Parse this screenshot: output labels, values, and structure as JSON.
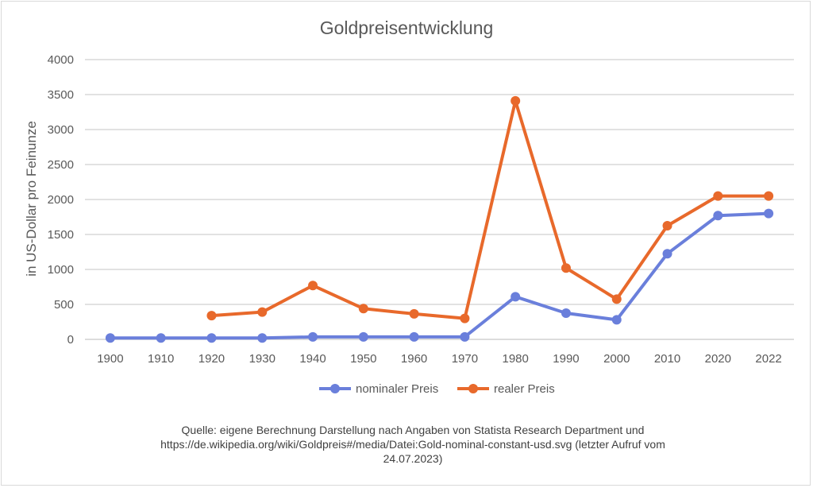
{
  "chart_data": {
    "type": "line",
    "title": "Goldpreisentwicklung",
    "xlabel": "",
    "ylabel": "in US-Dollar pro Feinunze",
    "categories": [
      "1900",
      "1910",
      "1920",
      "1930",
      "1940",
      "1950",
      "1960",
      "1970",
      "1980",
      "1990",
      "2000",
      "2010",
      "2020",
      "2022"
    ],
    "ylim": [
      0,
      4000
    ],
    "yticks": [
      0,
      500,
      1000,
      1500,
      2000,
      2500,
      3000,
      3500,
      4000
    ],
    "grid": true,
    "legend_position": "bottom",
    "series": [
      {
        "name": "nominaler Preis",
        "color": "#6a7fdb",
        "values": [
          20,
          20,
          20,
          20,
          35,
          35,
          35,
          36,
          610,
          375,
          280,
          1225,
          1770,
          1800
        ]
      },
      {
        "name": "realer Preis",
        "color": "#e8692b",
        "values": [
          null,
          null,
          340,
          390,
          770,
          440,
          365,
          300,
          3410,
          1020,
          575,
          1625,
          2050,
          2050
        ]
      }
    ]
  },
  "source": {
    "lines": [
      "Quelle: eigene Berechnung Darstellung nach Angaben von Statista Research Department und",
      "https://de.wikipedia.org/wiki/Goldpreis#/media/Datei:Gold-nominal-constant-usd.svg (letzter Aufruf vom",
      "24.07.2023)"
    ]
  }
}
